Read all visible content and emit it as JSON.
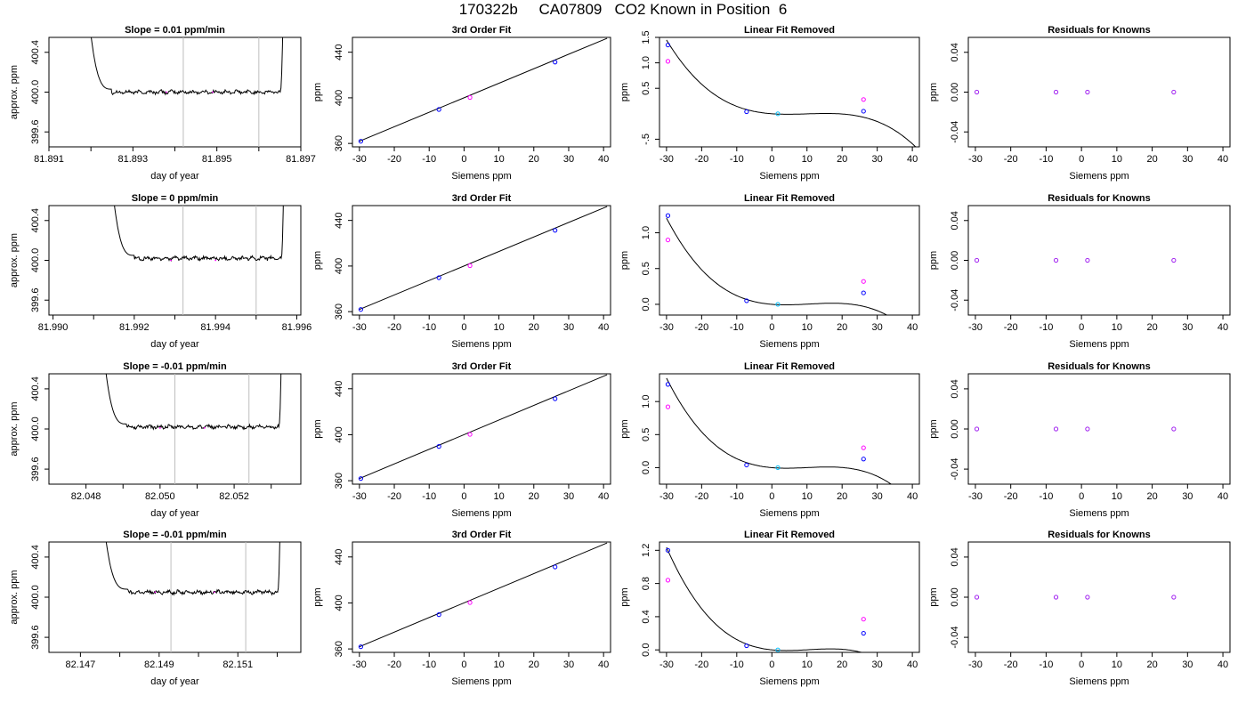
{
  "title": "170322b     CA07809   CO2 Known in Position  6",
  "labels": {
    "fit_title": "3rd Order Fit",
    "linres_title": "Linear Fit Removed",
    "resid_title": "Residuals for Knowns",
    "x_siemens": "Siemens ppm",
    "y_ppm": "ppm",
    "x_doy": "day of year",
    "y_approx": "approx. ppm"
  },
  "colors": {
    "axis": "#000000",
    "curve": "#000000",
    "vline": "#bebebe",
    "point_blue": "#0000ff",
    "point_cyan": "#00bfff",
    "point_magenta": "#ff00ff",
    "point_purple": "#a020f0"
  },
  "chart_data": [
    {
      "row": 1,
      "panel": "trace",
      "type": "line",
      "title": "Slope =  0.01  ppm/min",
      "xlabel": "day of year",
      "ylabel": "approx. ppm",
      "xlim": [
        81.891,
        81.897
      ],
      "ylim": [
        399.45,
        400.55
      ],
      "xticks": [
        81.891,
        81.893,
        81.895,
        81.897
      ],
      "xticklabels": [
        "81.891",
        "81.893",
        "81.895",
        "81.897"
      ],
      "xminor": [
        81.892,
        81.894,
        81.896
      ],
      "yticks": [
        399.6,
        400.0,
        400.4
      ],
      "yticklabels": [
        "399.6",
        "400.0",
        "400.4"
      ],
      "window": [
        81.8942,
        81.896
      ],
      "trace_start": 81.8918,
      "trace_end": 81.8966,
      "settle": 81.8925,
      "level": 400.0,
      "points": [
        [
          81.8938,
          400.0
        ],
        [
          81.8949,
          400.0
        ]
      ]
    },
    {
      "row": 1,
      "panel": "fit",
      "type": "scatter",
      "title": "3rd Order Fit",
      "xlabel": "Siemens ppm",
      "ylabel": "ppm",
      "xlim": [
        -32,
        42
      ],
      "ylim": [
        357,
        453
      ],
      "xticks": [
        -30,
        -20,
        -10,
        0,
        10,
        20,
        30,
        40
      ],
      "yticks": [
        360,
        400,
        440
      ],
      "line": [
        [
          -30,
          361.9
        ],
        [
          41,
          452.2
        ]
      ],
      "points": [
        {
          "x": -29.6,
          "y": 361.9,
          "color": "blue"
        },
        {
          "x": -7.2,
          "y": 389.8,
          "color": "blue"
        },
        {
          "x": 1.7,
          "y": 400.3,
          "color": "magenta"
        },
        {
          "x": 26.1,
          "y": 431.3,
          "color": "blue"
        }
      ]
    },
    {
      "row": 1,
      "panel": "linres",
      "type": "scatter",
      "title": "Linear Fit Removed",
      "xlabel": "Siemens ppm",
      "ylabel": "ppm",
      "xlim": [
        -32,
        42
      ],
      "ylim": [
        -0.65,
        1.5
      ],
      "xticks": [
        -30,
        -20,
        -10,
        0,
        10,
        20,
        30,
        40
      ],
      "yticks": [
        -0.5,
        0.5,
        1.0,
        1.5
      ],
      "yticklabels": [
        "-.5",
        "0.5",
        "1.0",
        "1.5"
      ],
      "curve_poly": [
        0.0,
        -0.005,
        0.00072,
        -2.41e-05
      ],
      "points": [
        {
          "x": -29.6,
          "y": 1.35,
          "color": "blue"
        },
        {
          "x": -29.6,
          "y": 1.03,
          "color": "magenta"
        },
        {
          "x": -7.2,
          "y": 0.04,
          "color": "blue"
        },
        {
          "x": 1.7,
          "y": 0.0,
          "color": "cyan"
        },
        {
          "x": 26.1,
          "y": 0.05,
          "color": "blue"
        },
        {
          "x": 26.1,
          "y": 0.28,
          "color": "magenta"
        }
      ]
    },
    {
      "row": 1,
      "panel": "resid",
      "type": "scatter",
      "title": "Residuals for Knowns",
      "xlabel": "Siemens ppm",
      "ylabel": "ppm",
      "xlim": [
        -32,
        42
      ],
      "ylim": [
        -0.055,
        0.055
      ],
      "xticks": [
        -30,
        -20,
        -10,
        0,
        10,
        20,
        30,
        40
      ],
      "yticks": [
        -0.04,
        0.0,
        0.04
      ],
      "yticklabels": [
        "-0.04",
        "0.00",
        "0.04"
      ],
      "points": [
        {
          "x": -29.6,
          "y": 0.0,
          "color": "purple"
        },
        {
          "x": -7.2,
          "y": 0.0,
          "color": "purple"
        },
        {
          "x": 1.7,
          "y": 0.0,
          "color": "purple"
        },
        {
          "x": 26.1,
          "y": 0.0,
          "color": "purple"
        }
      ]
    },
    {
      "row": 2,
      "panel": "trace",
      "type": "line",
      "title": "Slope =  0  ppm/min",
      "xlabel": "day of year",
      "ylabel": "approx. ppm",
      "xlim": [
        81.9899,
        81.9961
      ],
      "ylim": [
        399.45,
        400.55
      ],
      "xticks": [
        81.99,
        81.992,
        81.994,
        81.996
      ],
      "xticklabels": [
        "81.990",
        "81.992",
        "81.994",
        "81.996"
      ],
      "xminor": [
        81.991,
        81.993,
        81.995
      ],
      "yticks": [
        399.6,
        400.0,
        400.4
      ],
      "yticklabels": [
        "399.6",
        "400.0",
        "400.4"
      ],
      "window": [
        81.9932,
        81.995
      ],
      "trace_start": 81.9913,
      "trace_end": 81.9957,
      "settle": 81.992,
      "level": 400.02,
      "points": [
        [
          81.9929,
          400.0
        ],
        [
          81.994,
          400.0
        ]
      ]
    },
    {
      "row": 2,
      "panel": "fit",
      "type": "scatter",
      "title": "3rd Order Fit",
      "xlabel": "Siemens ppm",
      "ylabel": "ppm",
      "xlim": [
        -32,
        42
      ],
      "ylim": [
        357,
        453
      ],
      "xticks": [
        -30,
        -20,
        -10,
        0,
        10,
        20,
        30,
        40
      ],
      "yticks": [
        360,
        400,
        440
      ],
      "line": [
        [
          -30,
          361.9
        ],
        [
          41,
          452.2
        ]
      ],
      "points": [
        {
          "x": -29.6,
          "y": 361.9,
          "color": "blue"
        },
        {
          "x": -7.2,
          "y": 389.8,
          "color": "blue"
        },
        {
          "x": 1.7,
          "y": 400.3,
          "color": "magenta"
        },
        {
          "x": 26.1,
          "y": 431.3,
          "color": "blue"
        }
      ]
    },
    {
      "row": 2,
      "panel": "linres",
      "type": "scatter",
      "title": "Linear Fit Removed",
      "xlabel": "Siemens ppm",
      "ylabel": "ppm",
      "xlim": [
        -32,
        42
      ],
      "ylim": [
        -0.15,
        1.38
      ],
      "xticks": [
        -30,
        -20,
        -10,
        0,
        10,
        20,
        30,
        40
      ],
      "yticks": [
        0.0,
        0.5,
        1.0
      ],
      "yticklabels": [
        "0.0",
        "0.5",
        "1.0"
      ],
      "curve_poly": [
        0.0,
        -0.004,
        0.00062,
        -1.95e-05
      ],
      "points": [
        {
          "x": -29.6,
          "y": 1.24,
          "color": "blue"
        },
        {
          "x": -29.6,
          "y": 0.9,
          "color": "magenta"
        },
        {
          "x": -7.2,
          "y": 0.05,
          "color": "blue"
        },
        {
          "x": 1.7,
          "y": 0.0,
          "color": "cyan"
        },
        {
          "x": 26.1,
          "y": 0.16,
          "color": "blue"
        },
        {
          "x": 26.1,
          "y": 0.32,
          "color": "magenta"
        }
      ]
    },
    {
      "row": 2,
      "panel": "resid",
      "type": "scatter",
      "title": "Residuals for Knowns",
      "xlabel": "Siemens ppm",
      "ylabel": "ppm",
      "xlim": [
        -32,
        42
      ],
      "ylim": [
        -0.055,
        0.055
      ],
      "xticks": [
        -30,
        -20,
        -10,
        0,
        10,
        20,
        30,
        40
      ],
      "yticks": [
        -0.04,
        0.0,
        0.04
      ],
      "yticklabels": [
        "-0.04",
        "0.00",
        "0.04"
      ],
      "points": [
        {
          "x": -29.6,
          "y": 0.0,
          "color": "purple"
        },
        {
          "x": -7.2,
          "y": 0.0,
          "color": "purple"
        },
        {
          "x": 1.7,
          "y": 0.0,
          "color": "purple"
        },
        {
          "x": 26.1,
          "y": 0.0,
          "color": "purple"
        }
      ]
    },
    {
      "row": 3,
      "panel": "trace",
      "type": "line",
      "title": "Slope =  -0.01  ppm/min",
      "xlabel": "day of year",
      "ylabel": "approx. ppm",
      "xlim": [
        82.047,
        82.0538
      ],
      "ylim": [
        399.45,
        400.55
      ],
      "xticks": [
        82.048,
        82.05,
        82.052
      ],
      "xticklabels": [
        "82.048",
        "82.050",
        "82.052"
      ],
      "xminor": [
        82.049,
        82.051,
        82.053
      ],
      "yticks": [
        399.6,
        400.0,
        400.4
      ],
      "yticklabels": [
        "399.6",
        "400.0",
        "400.4"
      ],
      "window": [
        82.0504,
        82.0524
      ],
      "trace_start": 82.0483,
      "trace_end": 82.0533,
      "settle": 82.0491,
      "level": 400.02,
      "points": [
        [
          82.05,
          400.01
        ],
        [
          82.0512,
          400.01
        ]
      ]
    },
    {
      "row": 3,
      "panel": "fit",
      "type": "scatter",
      "title": "3rd Order Fit",
      "xlabel": "Siemens ppm",
      "ylabel": "ppm",
      "xlim": [
        -32,
        42
      ],
      "ylim": [
        357,
        453
      ],
      "xticks": [
        -30,
        -20,
        -10,
        0,
        10,
        20,
        30,
        40
      ],
      "yticks": [
        360,
        400,
        440
      ],
      "line": [
        [
          -30,
          361.9
        ],
        [
          41,
          452.2
        ]
      ],
      "points": [
        {
          "x": -29.6,
          "y": 361.9,
          "color": "blue"
        },
        {
          "x": -7.2,
          "y": 389.8,
          "color": "blue"
        },
        {
          "x": 1.7,
          "y": 400.3,
          "color": "magenta"
        },
        {
          "x": 26.1,
          "y": 431.3,
          "color": "blue"
        }
      ]
    },
    {
      "row": 3,
      "panel": "linres",
      "type": "scatter",
      "title": "Linear Fit Removed",
      "xlabel": "Siemens ppm",
      "ylabel": "ppm",
      "xlim": [
        -32,
        42
      ],
      "ylim": [
        -0.25,
        1.42
      ],
      "xticks": [
        -30,
        -20,
        -10,
        0,
        10,
        20,
        30,
        40
      ],
      "yticks": [
        0.0,
        0.5,
        1.0
      ],
      "yticklabels": [
        "0.0",
        "0.5",
        "1.0"
      ],
      "curve_poly": [
        0.0,
        -0.0045,
        0.00068,
        -2.25e-05
      ],
      "points": [
        {
          "x": -29.6,
          "y": 1.26,
          "color": "blue"
        },
        {
          "x": -29.6,
          "y": 0.92,
          "color": "magenta"
        },
        {
          "x": -7.2,
          "y": 0.04,
          "color": "blue"
        },
        {
          "x": 1.7,
          "y": 0.0,
          "color": "cyan"
        },
        {
          "x": 26.1,
          "y": 0.13,
          "color": "blue"
        },
        {
          "x": 26.1,
          "y": 0.3,
          "color": "magenta"
        }
      ]
    },
    {
      "row": 3,
      "panel": "resid",
      "type": "scatter",
      "title": "Residuals for Knowns",
      "xlabel": "Siemens ppm",
      "ylabel": "ppm",
      "xlim": [
        -32,
        42
      ],
      "ylim": [
        -0.055,
        0.055
      ],
      "xticks": [
        -30,
        -20,
        -10,
        0,
        10,
        20,
        30,
        40
      ],
      "yticks": [
        -0.04,
        0.0,
        0.04
      ],
      "yticklabels": [
        "-0.04",
        "0.00",
        "0.04"
      ],
      "points": [
        {
          "x": -29.6,
          "y": 0.0,
          "color": "purple"
        },
        {
          "x": -7.2,
          "y": 0.0,
          "color": "purple"
        },
        {
          "x": 1.7,
          "y": 0.0,
          "color": "purple"
        },
        {
          "x": 26.1,
          "y": 0.0,
          "color": "purple"
        }
      ]
    },
    {
      "row": 4,
      "panel": "trace",
      "type": "line",
      "title": "Slope =  -0.01  ppm/min",
      "xlabel": "day of year",
      "ylabel": "approx. ppm",
      "xlim": [
        82.1462,
        82.1526
      ],
      "ylim": [
        399.45,
        400.55
      ],
      "xticks": [
        82.147,
        82.149,
        82.151
      ],
      "xticklabels": [
        "82.147",
        "82.149",
        "82.151"
      ],
      "xminor": [
        82.148,
        82.15,
        82.152
      ],
      "yticks": [
        399.6,
        400.0,
        400.4
      ],
      "yticklabels": [
        "399.6",
        "400.0",
        "400.4"
      ],
      "window": [
        82.1493,
        82.1512
      ],
      "trace_start": 82.1474,
      "trace_end": 82.1521,
      "settle": 82.1482,
      "level": 400.05,
      "points": [
        [
          82.1489,
          400.05
        ],
        [
          82.1504,
          400.05
        ]
      ]
    },
    {
      "row": 4,
      "panel": "fit",
      "type": "scatter",
      "title": "3rd Order Fit",
      "xlabel": "Siemens ppm",
      "ylabel": "ppm",
      "xlim": [
        -32,
        42
      ],
      "ylim": [
        357,
        453
      ],
      "xticks": [
        -30,
        -20,
        -10,
        0,
        10,
        20,
        30,
        40
      ],
      "yticks": [
        360,
        400,
        440
      ],
      "line": [
        [
          -30,
          361.9
        ],
        [
          41,
          452.2
        ]
      ],
      "points": [
        {
          "x": -29.6,
          "y": 361.9,
          "color": "blue"
        },
        {
          "x": -7.2,
          "y": 389.8,
          "color": "blue"
        },
        {
          "x": 1.7,
          "y": 400.3,
          "color": "magenta"
        },
        {
          "x": 26.1,
          "y": 431.3,
          "color": "blue"
        }
      ]
    },
    {
      "row": 4,
      "panel": "linres",
      "type": "scatter",
      "title": "Linear Fit Removed",
      "xlabel": "Siemens ppm",
      "ylabel": "ppm",
      "xlim": [
        -32,
        42
      ],
      "ylim": [
        -0.03,
        1.3
      ],
      "xticks": [
        -30,
        -20,
        -10,
        0,
        10,
        20,
        30,
        40
      ],
      "yticks": [
        0.0,
        0.4,
        0.8,
        1.2
      ],
      "yticklabels": [
        "0.0",
        "0.4",
        "0.8",
        "1.2"
      ],
      "curve_poly": [
        0.0,
        -0.0042,
        0.00063,
        -2.01e-05
      ],
      "points": [
        {
          "x": -29.6,
          "y": 1.2,
          "color": "blue"
        },
        {
          "x": -29.6,
          "y": 0.84,
          "color": "magenta"
        },
        {
          "x": -7.2,
          "y": 0.05,
          "color": "blue"
        },
        {
          "x": 1.7,
          "y": 0.0,
          "color": "cyan"
        },
        {
          "x": 26.1,
          "y": 0.2,
          "color": "blue"
        },
        {
          "x": 26.1,
          "y": 0.37,
          "color": "magenta"
        }
      ]
    },
    {
      "row": 4,
      "panel": "resid",
      "type": "scatter",
      "title": "Residuals for Knowns",
      "xlabel": "Siemens ppm",
      "ylabel": "ppm",
      "xlim": [
        -32,
        42
      ],
      "ylim": [
        -0.055,
        0.055
      ],
      "xticks": [
        -30,
        -20,
        -10,
        0,
        10,
        20,
        30,
        40
      ],
      "yticks": [
        -0.04,
        0.0,
        0.04
      ],
      "yticklabels": [
        "-0.04",
        "0.00",
        "0.04"
      ],
      "points": [
        {
          "x": -29.6,
          "y": 0.0,
          "color": "purple"
        },
        {
          "x": -7.2,
          "y": 0.0,
          "color": "purple"
        },
        {
          "x": 1.7,
          "y": 0.0,
          "color": "purple"
        },
        {
          "x": 26.1,
          "y": 0.0,
          "color": "purple"
        }
      ]
    }
  ]
}
